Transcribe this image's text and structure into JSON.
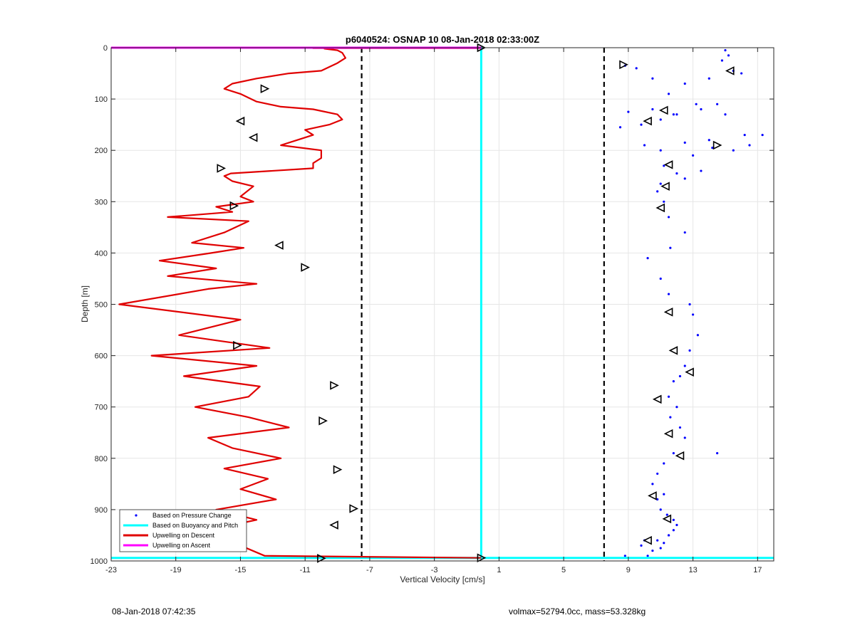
{
  "chart_data": {
    "type": "line",
    "title": "p6040524: OSNAP 10 08-Jan-2018 02:33:00Z",
    "xlabel": "Vertical Velocity [cm/s]",
    "ylabel": "Depth [m]",
    "xlim": [
      -23,
      18
    ],
    "ylim": [
      0,
      1000
    ],
    "y_reversed": true,
    "xticks": [
      -23,
      -19,
      -15,
      -11,
      -7,
      -3,
      1,
      5,
      9,
      13,
      17
    ],
    "yticks": [
      0,
      100,
      200,
      300,
      400,
      500,
      600,
      700,
      800,
      900,
      1000
    ],
    "grid": true,
    "legend_position": "bottom-left",
    "colors": {
      "pressure": "#0000ff",
      "buoyancy": "#00ffff",
      "descent": "#e00000",
      "ascent": "#ff00ff",
      "thresholds": "#000000"
    },
    "vertical_lines": [
      -7.5,
      7.5
    ],
    "series": [
      {
        "name": "Based on Pressure Change",
        "style": "points",
        "x": [
          15.0,
          15.2,
          14.8,
          16.0,
          15.5,
          8.8,
          9.5,
          10.5,
          11.5,
          12.5,
          14.0,
          13.2,
          12.0,
          11.0,
          10.5,
          9.0,
          8.5,
          9.8,
          11.8,
          13.5,
          14.5,
          15.0,
          16.2,
          10.0,
          11.0,
          12.5,
          14.0,
          11.2,
          12.0,
          13.0,
          14.2,
          15.5,
          17.3,
          16.5,
          13.5,
          12.5,
          11.0,
          10.8,
          11.2,
          11.5,
          12.5,
          11.6,
          10.2,
          11.0,
          11.5,
          12.8,
          13.0,
          13.3,
          12.8,
          12.5,
          12.2,
          11.8,
          11.5,
          12.0,
          11.6,
          12.2,
          12.5,
          11.8,
          11.2,
          10.8,
          10.5,
          10.8,
          11.2,
          11.0,
          11.4,
          11.8,
          14.5,
          12.0,
          11.5,
          10.8,
          11.2,
          10.5,
          10.2,
          11.0,
          11.5,
          11.8,
          10.0,
          9.8,
          8.8
        ],
        "y": [
          5,
          15,
          25,
          50,
          45,
          35,
          40,
          60,
          90,
          70,
          60,
          110,
          130,
          140,
          120,
          125,
          155,
          150,
          130,
          120,
          110,
          130,
          170,
          190,
          200,
          185,
          180,
          230,
          245,
          210,
          195,
          200,
          170,
          190,
          240,
          255,
          265,
          280,
          300,
          330,
          360,
          390,
          410,
          450,
          480,
          500,
          520,
          560,
          590,
          620,
          640,
          650,
          680,
          700,
          720,
          740,
          760,
          790,
          810,
          830,
          850,
          880,
          870,
          900,
          910,
          920,
          790,
          930,
          950,
          960,
          965,
          980,
          990,
          975,
          950,
          940,
          960,
          970,
          990
        ]
      },
      {
        "name": "Based on Buoyancy and Pitch",
        "style": "line",
        "x": [
          -23,
          -0.1,
          -0.1,
          -0.1,
          -0.1,
          18
        ],
        "y": [
          994,
          994,
          500,
          0,
          994,
          994
        ]
      },
      {
        "name": "Upwelling on Descent",
        "style": "line",
        "x": [
          -0.1,
          -13.5,
          -16.5,
          -15.5,
          -14.0,
          -16.5,
          -12.8,
          -15.0,
          -13.3,
          -16.0,
          -12.5,
          -15.5,
          -17.0,
          -12.0,
          -14.5,
          -17.8,
          -14.5,
          -13.8,
          -18.5,
          -14.0,
          -20.5,
          -13.2,
          -18.8,
          -15.0,
          -22.5,
          -17.0,
          -14.0,
          -19.5,
          -16.5,
          -20.0,
          -16.8,
          -14.8,
          -18.0,
          -16.0,
          -14.5,
          -19.5,
          -15.5,
          -16.5,
          -14.2,
          -15.0,
          -14.2,
          -15.5,
          -16.0,
          -15.6,
          -10.5,
          -10.5,
          -10.0,
          -10.0,
          -12.5,
          -11.5,
          -10.5,
          -11.0,
          -9.5,
          -8.7,
          -9.0,
          -10.5,
          -12.5,
          -14.0,
          -15.0,
          -16.0,
          -15.5,
          -14.0,
          -12.0,
          -10.0,
          -9.0,
          -8.5,
          -8.7,
          -9.0,
          -9.8,
          -9.5,
          -10.2,
          -9.5,
          -9.0,
          -9.3,
          -9.0,
          -7.5,
          -7.0,
          -7.5,
          -8.0,
          -7.3,
          -8.0,
          -8.6,
          -9.2,
          -9.5,
          -9.7,
          -10.0,
          -10.0,
          -10.5,
          -10.2,
          -10.0,
          -9.5,
          -9.0,
          -0.1
        ],
        "y": [
          994,
          990,
          950,
          930,
          920,
          900,
          880,
          860,
          840,
          820,
          800,
          780,
          760,
          740,
          720,
          700,
          680,
          660,
          640,
          620,
          600,
          585,
          560,
          530,
          500,
          470,
          460,
          445,
          430,
          415,
          400,
          390,
          380,
          360,
          338,
          330,
          320,
          310,
          300,
          290,
          270,
          260,
          250,
          245,
          235,
          225,
          215,
          200,
          190,
          180,
          170,
          160,
          150,
          140,
          130,
          120,
          115,
          105,
          90,
          80,
          70,
          60,
          50,
          45,
          30,
          20,
          10,
          5,
          2,
          1,
          1,
          1,
          1,
          1,
          1,
          1,
          1,
          1,
          1,
          1,
          1,
          1,
          1,
          1,
          1,
          1,
          1,
          1,
          1,
          1,
          1,
          1,
          1
        ]
      },
      {
        "name": "Upwelling on Ascent",
        "style": "line",
        "x": [
          -23,
          -0.1
        ],
        "y": [
          0,
          0
        ]
      }
    ],
    "markers": {
      "descent": [
        {
          "x": -0.1,
          "y": 0,
          "dir": "right"
        },
        {
          "x": -13.5,
          "y": 80,
          "dir": "right"
        },
        {
          "x": -15.0,
          "y": 143,
          "dir": "left"
        },
        {
          "x": -14.2,
          "y": 175,
          "dir": "left"
        },
        {
          "x": -16.2,
          "y": 235,
          "dir": "right"
        },
        {
          "x": -15.4,
          "y": 308,
          "dir": "right"
        },
        {
          "x": -12.6,
          "y": 385,
          "dir": "left"
        },
        {
          "x": -11.0,
          "y": 428,
          "dir": "right"
        },
        {
          "x": -15.2,
          "y": 580,
          "dir": "right"
        },
        {
          "x": -9.2,
          "y": 658,
          "dir": "right"
        },
        {
          "x": -9.9,
          "y": 727,
          "dir": "right"
        },
        {
          "x": -9.0,
          "y": 822,
          "dir": "right"
        },
        {
          "x": -8.0,
          "y": 898,
          "dir": "right"
        },
        {
          "x": -9.2,
          "y": 930,
          "dir": "left"
        },
        {
          "x": -10.0,
          "y": 995,
          "dir": "right"
        }
      ],
      "ascent": [
        {
          "x": 15.3,
          "y": 45,
          "dir": "left"
        },
        {
          "x": 8.7,
          "y": 33,
          "dir": "right"
        },
        {
          "x": 11.2,
          "y": 122,
          "dir": "left"
        },
        {
          "x": 10.2,
          "y": 143,
          "dir": "left"
        },
        {
          "x": 14.5,
          "y": 190,
          "dir": "right"
        },
        {
          "x": 11.5,
          "y": 228,
          "dir": "left"
        },
        {
          "x": 11.3,
          "y": 270,
          "dir": "left"
        },
        {
          "x": 11.0,
          "y": 312,
          "dir": "left"
        },
        {
          "x": 11.5,
          "y": 515,
          "dir": "left"
        },
        {
          "x": 11.8,
          "y": 590,
          "dir": "left"
        },
        {
          "x": 12.8,
          "y": 632,
          "dir": "left"
        },
        {
          "x": 10.8,
          "y": 685,
          "dir": "left"
        },
        {
          "x": 11.5,
          "y": 752,
          "dir": "left"
        },
        {
          "x": 12.2,
          "y": 795,
          "dir": "left"
        },
        {
          "x": 10.5,
          "y": 873,
          "dir": "left"
        },
        {
          "x": 11.4,
          "y": 918,
          "dir": "left"
        },
        {
          "x": 10.2,
          "y": 960,
          "dir": "left"
        },
        {
          "x": -0.1,
          "y": 994,
          "dir": "right"
        }
      ]
    }
  },
  "footer": {
    "timestamp": "08-Jan-2018 07:42:35",
    "summary": "volmax=52794.0cc, mass=53.328kg"
  }
}
